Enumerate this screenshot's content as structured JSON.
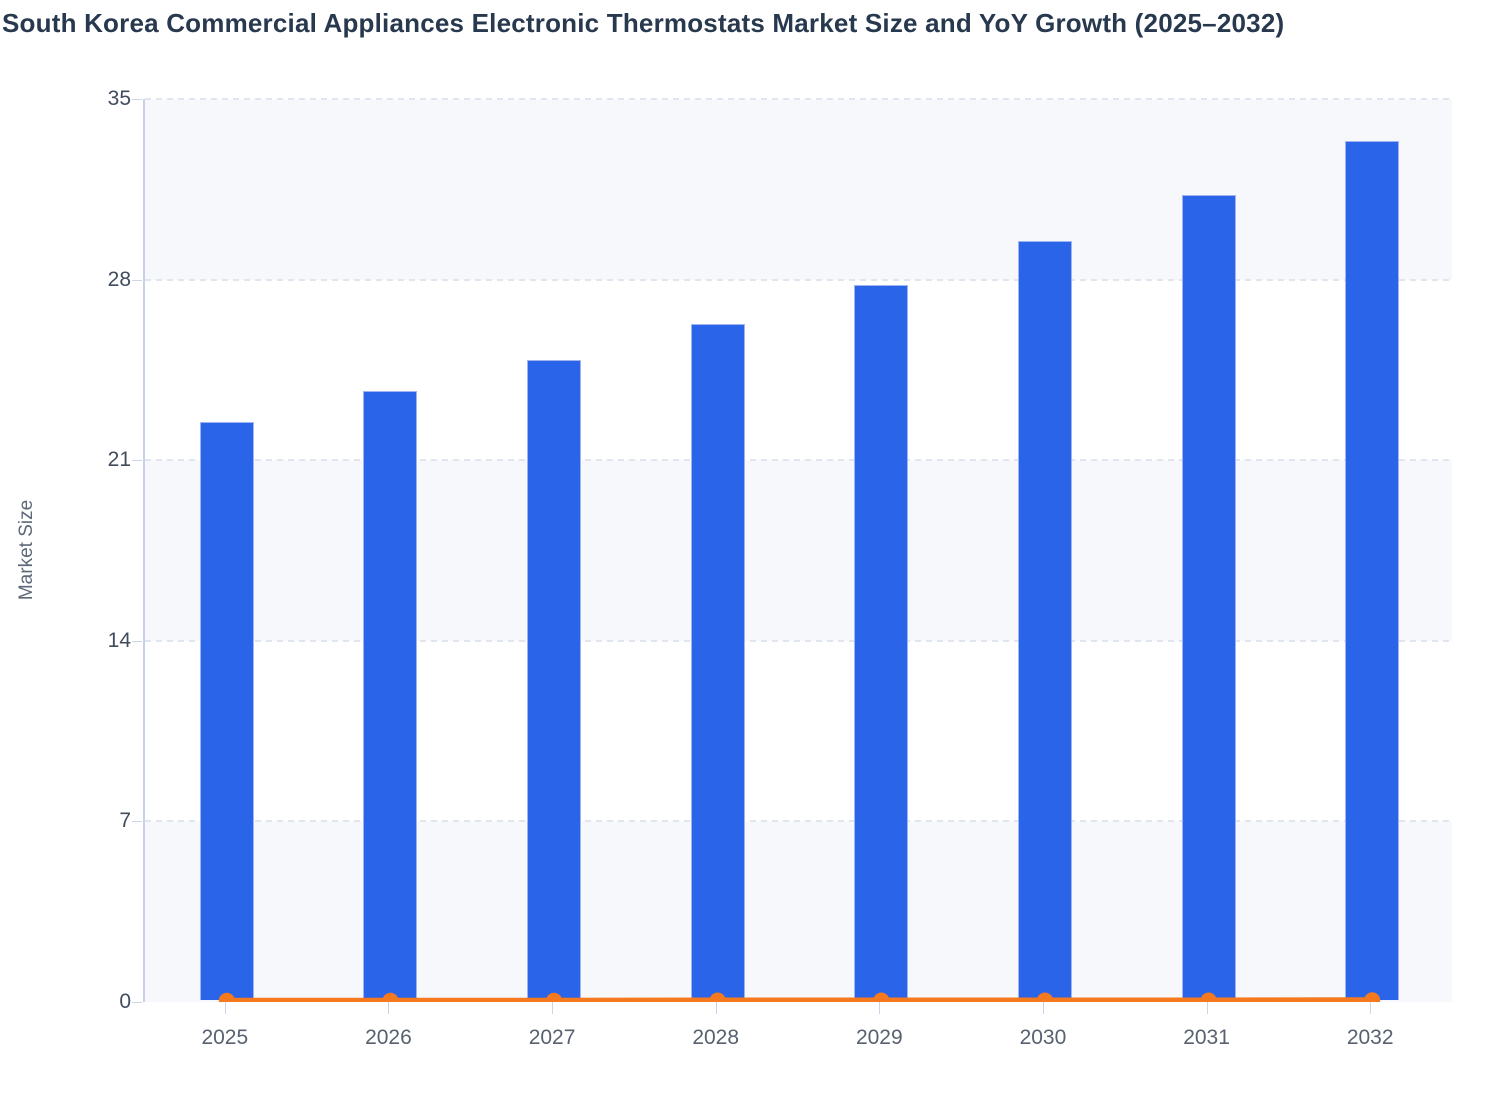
{
  "title": "South Korea Commercial Appliances Electronic Thermostats Market Size and YoY Growth (2025–2032)",
  "colors": {
    "bar_fill": "#2a64e8",
    "bar_border": "#a2b4f0",
    "line": "#f4791f",
    "title_text": "#28394f",
    "axis_tick_text": "#414c5d",
    "x_label_text": "#57616f",
    "band": "#f7f8fb",
    "gridline": "#e1e5ee",
    "axis_line": "#c7d1e8"
  },
  "chart_data": {
    "type": "bar",
    "title": "South Korea Commercial Appliances Electronic Thermostats Market Size and YoY Growth (2025–2032)",
    "categories": [
      "2025",
      "2026",
      "2027",
      "2028",
      "2029",
      "2030",
      "2031",
      "2032"
    ],
    "series": [
      {
        "name": "Market Size",
        "type": "bar",
        "values": [
          22.4,
          23.6,
          24.8,
          26.2,
          27.7,
          29.4,
          31.2,
          33.3
        ],
        "color": "#2a64e8"
      },
      {
        "name": "YoY Growth",
        "type": "line",
        "values": [
          0.05,
          0.05,
          0.05,
          0.06,
          0.06,
          0.06,
          0.06,
          0.07
        ],
        "color": "#f4791f"
      }
    ],
    "xlabel": "",
    "ylabel": "Market Size",
    "ylim": [
      0,
      35
    ],
    "yticks": [
      0,
      7,
      14,
      21,
      28,
      35
    ],
    "grid": true,
    "grid_style": "dashed",
    "legend": false,
    "band_fill_between_gridlines": true
  }
}
